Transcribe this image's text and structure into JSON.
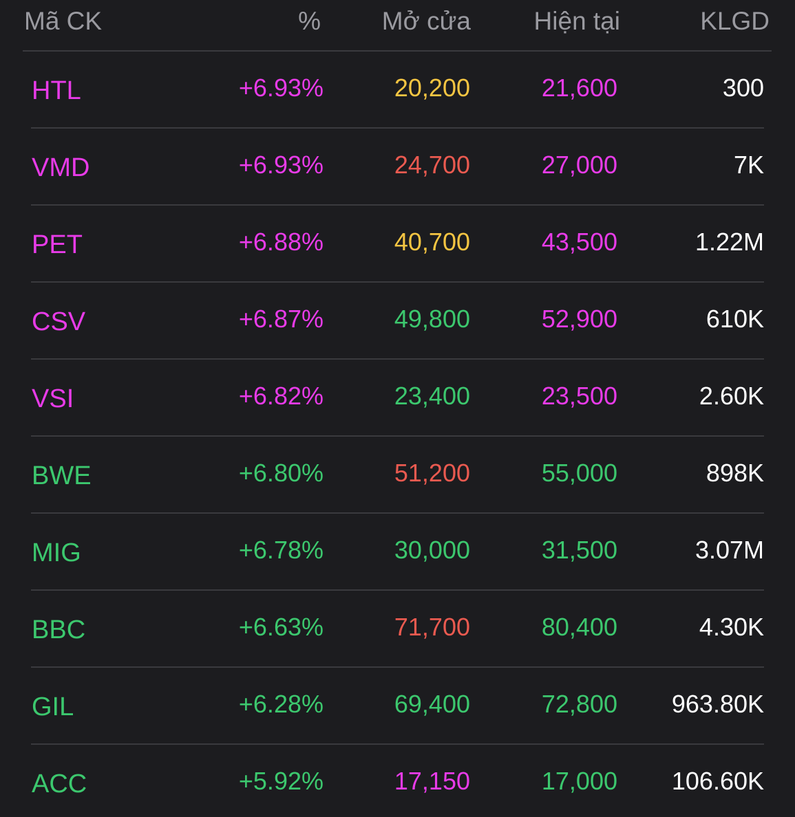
{
  "colors": {
    "ceiling": "#e83be8",
    "up": "#3cc86e",
    "down": "#ea5a50",
    "reference": "#f5c542",
    "text": "#ffffff",
    "header": "#9a9aa0"
  },
  "header": {
    "symbol": "Mã CK",
    "percent": "%",
    "open": "Mở cửa",
    "current": "Hiện tại",
    "volume": "KLGD"
  },
  "rows": [
    {
      "symbol": "HTL",
      "percent": "+6.93%",
      "open": "20,200",
      "current": "21,600",
      "volume": "300",
      "symbol_color": "#e83be8",
      "percent_color": "#e83be8",
      "open_color": "#f5c542",
      "current_color": "#e83be8"
    },
    {
      "symbol": "VMD",
      "percent": "+6.93%",
      "open": "24,700",
      "current": "27,000",
      "volume": "7K",
      "symbol_color": "#e83be8",
      "percent_color": "#e83be8",
      "open_color": "#ea5a50",
      "current_color": "#e83be8"
    },
    {
      "symbol": "PET",
      "percent": "+6.88%",
      "open": "40,700",
      "current": "43,500",
      "volume": "1.22M",
      "symbol_color": "#e83be8",
      "percent_color": "#e83be8",
      "open_color": "#f5c542",
      "current_color": "#e83be8"
    },
    {
      "symbol": "CSV",
      "percent": "+6.87%",
      "open": "49,800",
      "current": "52,900",
      "volume": "610K",
      "symbol_color": "#e83be8",
      "percent_color": "#e83be8",
      "open_color": "#3cc86e",
      "current_color": "#e83be8"
    },
    {
      "symbol": "VSI",
      "percent": "+6.82%",
      "open": "23,400",
      "current": "23,500",
      "volume": "2.60K",
      "symbol_color": "#e83be8",
      "percent_color": "#e83be8",
      "open_color": "#3cc86e",
      "current_color": "#e83be8"
    },
    {
      "symbol": "BWE",
      "percent": "+6.80%",
      "open": "51,200",
      "current": "55,000",
      "volume": "898K",
      "symbol_color": "#3cc86e",
      "percent_color": "#3cc86e",
      "open_color": "#ea5a50",
      "current_color": "#3cc86e"
    },
    {
      "symbol": "MIG",
      "percent": "+6.78%",
      "open": "30,000",
      "current": "31,500",
      "volume": "3.07M",
      "symbol_color": "#3cc86e",
      "percent_color": "#3cc86e",
      "open_color": "#3cc86e",
      "current_color": "#3cc86e"
    },
    {
      "symbol": "BBC",
      "percent": "+6.63%",
      "open": "71,700",
      "current": "80,400",
      "volume": "4.30K",
      "symbol_color": "#3cc86e",
      "percent_color": "#3cc86e",
      "open_color": "#ea5a50",
      "current_color": "#3cc86e"
    },
    {
      "symbol": "GIL",
      "percent": "+6.28%",
      "open": "69,400",
      "current": "72,800",
      "volume": "963.80K",
      "symbol_color": "#3cc86e",
      "percent_color": "#3cc86e",
      "open_color": "#3cc86e",
      "current_color": "#3cc86e"
    },
    {
      "symbol": "ACC",
      "percent": "+5.92%",
      "open": "17,150",
      "current": "17,000",
      "volume": "106.60K",
      "symbol_color": "#3cc86e",
      "percent_color": "#3cc86e",
      "open_color": "#e83be8",
      "current_color": "#3cc86e"
    }
  ]
}
